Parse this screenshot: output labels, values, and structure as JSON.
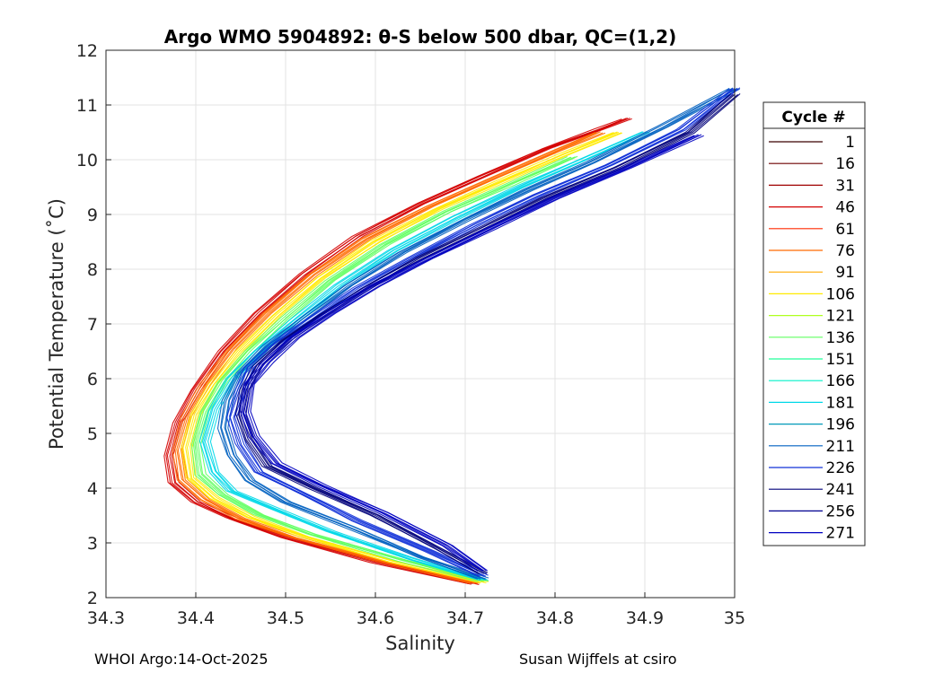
{
  "chart_data": {
    "type": "line",
    "title": "Argo WMO 5904892: θ-S below 500 dbar,  QC=(1,2)",
    "xlabel": "Salinity",
    "ylabel": "Potential Temperature (˚C)",
    "xlim": [
      34.3,
      35
    ],
    "ylim": [
      2,
      12
    ],
    "xticks": [
      "34.3",
      "34.4",
      "34.5",
      "34.6",
      "34.7",
      "34.8",
      "34.9",
      "35"
    ],
    "yticks": [
      "2",
      "3",
      "4",
      "5",
      "6",
      "7",
      "8",
      "9",
      "10",
      "11",
      "12"
    ],
    "grid": true,
    "legend": {
      "title": "Cycle #",
      "placement": "outside-right",
      "entries": [
        {
          "label": "1",
          "color": "#3a0000"
        },
        {
          "label": "16",
          "color": "#6e0000"
        },
        {
          "label": "31",
          "color": "#a00000"
        },
        {
          "label": "46",
          "color": "#d40000"
        },
        {
          "label": "61",
          "color": "#ff2a00"
        },
        {
          "label": "76",
          "color": "#ff6a00"
        },
        {
          "label": "91",
          "color": "#ffaa00"
        },
        {
          "label": "106",
          "color": "#ffea00"
        },
        {
          "label": "121",
          "color": "#b0ff20"
        },
        {
          "label": "136",
          "color": "#60ff60"
        },
        {
          "label": "151",
          "color": "#20ff9a"
        },
        {
          "label": "166",
          "color": "#00f0c8"
        },
        {
          "label": "181",
          "color": "#00d8e8"
        },
        {
          "label": "196",
          "color": "#009ab8"
        },
        {
          "label": "211",
          "color": "#0060c0"
        },
        {
          "label": "226",
          "color": "#1030d8"
        },
        {
          "label": "241",
          "color": "#00007a"
        },
        {
          "label": "256",
          "color": "#000090"
        },
        {
          "label": "271",
          "color": "#0000c0"
        }
      ]
    },
    "series": [
      {
        "color": "#d40000",
        "s": [
          34.71,
          34.6,
          34.5,
          34.44,
          34.4,
          34.375,
          34.37,
          34.38,
          34.4,
          34.43,
          34.47,
          34.52,
          34.58,
          34.65,
          34.72,
          34.79,
          34.85,
          34.88
        ],
        "t": [
          2.25,
          2.65,
          3.1,
          3.45,
          3.75,
          4.1,
          4.6,
          5.2,
          5.8,
          6.5,
          7.2,
          7.9,
          8.6,
          9.2,
          9.7,
          10.2,
          10.55,
          10.75
        ]
      },
      {
        "color": "#ff6a00",
        "s": [
          34.71,
          34.61,
          34.51,
          34.45,
          34.41,
          34.385,
          34.38,
          34.39,
          34.41,
          34.44,
          34.48,
          34.53,
          34.59,
          34.66,
          34.73,
          34.8,
          34.85
        ],
        "t": [
          2.27,
          2.65,
          3.1,
          3.45,
          3.8,
          4.15,
          4.7,
          5.3,
          5.9,
          6.55,
          7.2,
          7.9,
          8.55,
          9.15,
          9.65,
          10.15,
          10.5
        ]
      },
      {
        "color": "#ffea00",
        "s": [
          34.72,
          34.62,
          34.52,
          34.46,
          34.42,
          34.395,
          34.39,
          34.4,
          34.42,
          34.45,
          34.49,
          34.54,
          34.6,
          34.67,
          34.74,
          34.81,
          34.87
        ],
        "t": [
          2.28,
          2.66,
          3.12,
          3.48,
          3.82,
          4.18,
          4.75,
          5.35,
          5.9,
          6.5,
          7.15,
          7.85,
          8.5,
          9.1,
          9.6,
          10.1,
          10.5
        ]
      },
      {
        "color": "#60ff60",
        "s": [
          34.72,
          34.63,
          34.53,
          34.47,
          34.43,
          34.405,
          34.4,
          34.41,
          34.43,
          34.46,
          34.5,
          34.55,
          34.61,
          34.68,
          34.75,
          34.82
        ],
        "t": [
          2.3,
          2.68,
          3.15,
          3.52,
          3.88,
          4.25,
          4.8,
          5.4,
          5.95,
          6.5,
          7.1,
          7.8,
          8.45,
          9.05,
          9.55,
          10.05
        ]
      },
      {
        "color": "#00d8e8",
        "s": [
          34.72,
          34.64,
          34.55,
          34.49,
          34.44,
          34.42,
          34.41,
          34.42,
          34.44,
          34.47,
          34.51,
          34.56,
          34.62,
          34.69,
          34.76,
          34.83,
          34.9
        ],
        "t": [
          2.32,
          2.7,
          3.2,
          3.6,
          3.95,
          4.3,
          4.85,
          5.45,
          6.0,
          6.5,
          7.05,
          7.7,
          8.35,
          8.95,
          9.5,
          10.0,
          10.5
        ]
      },
      {
        "color": "#0060c0",
        "s": [
          34.72,
          34.65,
          34.57,
          34.5,
          34.46,
          34.44,
          34.43,
          34.435,
          34.45,
          34.48,
          34.52,
          34.57,
          34.63,
          34.7,
          34.77,
          34.84,
          34.92,
          35.0
        ],
        "t": [
          2.35,
          2.75,
          3.3,
          3.75,
          4.15,
          4.6,
          5.1,
          5.6,
          6.1,
          6.6,
          7.1,
          7.7,
          8.3,
          8.9,
          9.45,
          9.95,
          10.6,
          11.3
        ]
      },
      {
        "color": "#1030d8",
        "s": [
          34.72,
          34.66,
          34.58,
          34.52,
          34.47,
          34.45,
          34.44,
          34.45,
          34.46,
          34.49,
          34.53,
          34.58,
          34.64,
          34.71,
          34.78,
          34.86,
          34.94,
          35.0
        ],
        "t": [
          2.4,
          2.85,
          3.4,
          3.9,
          4.3,
          4.8,
          5.3,
          5.8,
          6.2,
          6.65,
          7.1,
          7.65,
          8.2,
          8.8,
          9.35,
          9.9,
          10.55,
          11.3
        ]
      },
      {
        "color": "#00007a",
        "s": [
          34.72,
          34.67,
          34.6,
          34.53,
          34.48,
          34.46,
          34.45,
          34.455,
          34.47,
          34.5,
          34.54,
          34.59,
          34.65,
          34.72,
          34.79,
          34.87,
          34.95,
          35.0
        ],
        "t": [
          2.45,
          2.9,
          3.5,
          4.0,
          4.4,
          4.9,
          5.35,
          5.8,
          6.25,
          6.7,
          7.15,
          7.65,
          8.2,
          8.75,
          9.3,
          9.85,
          10.5,
          11.2
        ]
      },
      {
        "color": "#0000c0",
        "s": [
          34.72,
          34.68,
          34.61,
          34.54,
          34.49,
          34.465,
          34.455,
          34.46,
          34.48,
          34.51,
          34.55,
          34.6,
          34.66,
          34.73,
          34.8,
          34.88,
          34.96
        ],
        "t": [
          2.5,
          2.95,
          3.55,
          4.05,
          4.45,
          4.95,
          5.4,
          5.9,
          6.3,
          6.75,
          7.2,
          7.7,
          8.2,
          8.75,
          9.3,
          9.85,
          10.45
        ]
      }
    ]
  },
  "footer": {
    "left": "WHOI Argo:14-Oct-2025",
    "right": "Susan Wijffels at csiro"
  }
}
